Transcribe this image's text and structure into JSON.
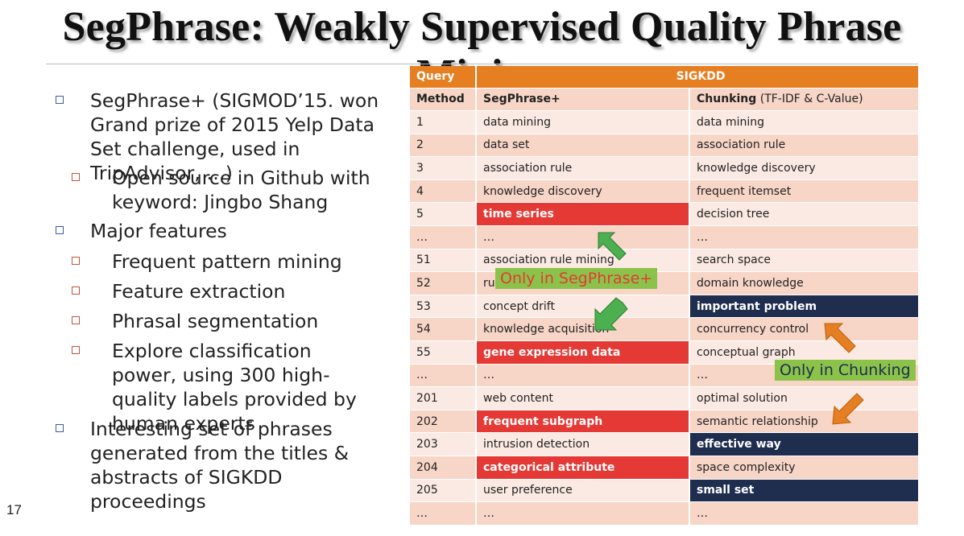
{
  "slide": {
    "title": "SegPhrase:  Weakly Supervised Quality Phrase Mining",
    "page_number": "17"
  },
  "bullets": [
    {
      "level": 1,
      "text": "SegPhrase+ (SIGMOD’15. won Grand prize of 2015 Yelp Data Set challenge, used in TripAdvisor, …)"
    },
    {
      "level": 2,
      "text": "Open source in Github with keyword: Jingbo Shang"
    },
    {
      "level": 1,
      "text": "Major features"
    },
    {
      "level": 2,
      "text": "Frequent pattern mining"
    },
    {
      "level": 2,
      "text": "Feature extraction"
    },
    {
      "level": 2,
      "text": "Phrasal segmentation"
    },
    {
      "level": 2,
      "text": "Explore classification power, using 300 high-quality labels provided by human experts"
    },
    {
      "level": 1,
      "text": "Interesting set of phrases generated from the titles & abstracts of SIGKDD proceedings"
    }
  ],
  "table": {
    "query_label": "Query",
    "query_value": "SIGKDD",
    "method_label": "Method",
    "col_segphrase": "SegPhrase+",
    "col_chunking_bold": "Chunking",
    "col_chunking_rest": " (TF-IDF & C-Value)",
    "rows": [
      {
        "rank": "1",
        "seg": "data mining",
        "chunk": "data mining",
        "seg_hl": "",
        "chunk_hl": ""
      },
      {
        "rank": "2",
        "seg": "data set",
        "chunk": "association rule",
        "seg_hl": "",
        "chunk_hl": ""
      },
      {
        "rank": "3",
        "seg": "association rule",
        "chunk": "knowledge discovery",
        "seg_hl": "",
        "chunk_hl": ""
      },
      {
        "rank": "4",
        "seg": "knowledge discovery",
        "chunk": "frequent itemset",
        "seg_hl": "",
        "chunk_hl": ""
      },
      {
        "rank": "5",
        "seg": "time series",
        "chunk": "decision tree",
        "seg_hl": "red",
        "chunk_hl": ""
      },
      {
        "rank": "…",
        "seg": "…",
        "chunk": "…",
        "seg_hl": "",
        "chunk_hl": ""
      },
      {
        "rank": "51",
        "seg": "association rule mining",
        "chunk": "search space",
        "seg_hl": "",
        "chunk_hl": ""
      },
      {
        "rank": "52",
        "seg": "ru",
        "chunk": "domain knowledge",
        "seg_hl": "",
        "chunk_hl": ""
      },
      {
        "rank": "53",
        "seg": "concept drift",
        "chunk": "important problem",
        "seg_hl": "",
        "chunk_hl": "navy"
      },
      {
        "rank": "54",
        "seg": "knowledge acquisition",
        "chunk": "concurrency control",
        "seg_hl": "",
        "chunk_hl": ""
      },
      {
        "rank": "55",
        "seg": "gene expression data",
        "chunk": "conceptual graph",
        "seg_hl": "red",
        "chunk_hl": ""
      },
      {
        "rank": "…",
        "seg": "…",
        "chunk": "…",
        "seg_hl": "",
        "chunk_hl": ""
      },
      {
        "rank": "201",
        "seg": "web content",
        "chunk": "optimal solution",
        "seg_hl": "",
        "chunk_hl": ""
      },
      {
        "rank": "202",
        "seg": "frequent subgraph",
        "chunk": "semantic relationship",
        "seg_hl": "red",
        "chunk_hl": ""
      },
      {
        "rank": "203",
        "seg": "intrusion detection",
        "chunk": "effective way",
        "seg_hl": "",
        "chunk_hl": "navy"
      },
      {
        "rank": "204",
        "seg": "categorical attribute",
        "chunk": "space complexity",
        "seg_hl": "red",
        "chunk_hl": ""
      },
      {
        "rank": "205",
        "seg": "user preference",
        "chunk": "small set",
        "seg_hl": "",
        "chunk_hl": "navy"
      },
      {
        "rank": "…",
        "seg": "…",
        "chunk": "…",
        "seg_hl": "",
        "chunk_hl": ""
      }
    ]
  },
  "callouts": {
    "segphrase_only": "Only in SegPhrase+",
    "chunking_only": "Only in Chunking"
  },
  "colors": {
    "header_orange": "#e67e22",
    "highlight_red": "#e53935",
    "highlight_navy": "#1f2d4f",
    "callout_green": "#8bc34a",
    "arrow_green": "#4caf50",
    "arrow_orange": "#e67e22"
  }
}
